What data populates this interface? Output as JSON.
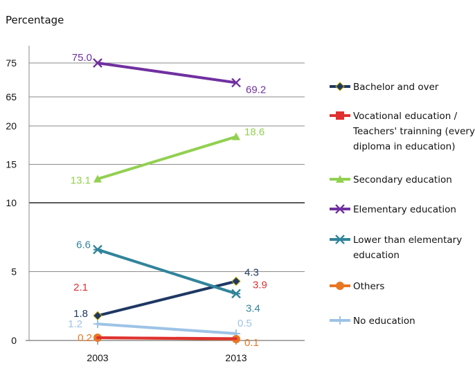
{
  "chart_data": {
    "type": "line",
    "ylabel": "Percentage",
    "categories": [
      "2003",
      "2013"
    ],
    "y_axis": {
      "broken": true,
      "segments": [
        [
          0,
          10
        ],
        [
          10,
          20
        ],
        [
          65,
          75
        ]
      ],
      "tick_labels": [
        "0",
        "5",
        "10",
        "15",
        "20",
        "65",
        "75"
      ]
    },
    "grid": true,
    "legend_position": "right",
    "series": [
      {
        "name": "Bachelor and over",
        "values": [
          1.8,
          4.3
        ],
        "labels": [
          "1.8",
          "4.3"
        ],
        "color": "#1f3864",
        "marker": "diamond"
      },
      {
        "name": "Vocational education / Teachers' trainning (every diploma in education)",
        "values": [
          2.1,
          3.9
        ],
        "labels": [
          "2.1",
          "3.9"
        ],
        "color": "#e03030",
        "marker": "square"
      },
      {
        "name": "Secondary education",
        "values": [
          13.1,
          18.6
        ],
        "labels": [
          "13.1",
          "18.6"
        ],
        "color": "#92d050",
        "marker": "triangle"
      },
      {
        "name": "Elementary education",
        "values": [
          75.0,
          69.2
        ],
        "labels": [
          "75.0",
          "69.2"
        ],
        "color": "#7030a0",
        "marker": "x"
      },
      {
        "name": "Lower than elementary education",
        "values": [
          6.6,
          3.4
        ],
        "labels": [
          "6.6",
          "3.4"
        ],
        "color": "#31849b",
        "marker": "star"
      },
      {
        "name": "Others",
        "values": [
          0.2,
          0.1
        ],
        "labels": [
          "0.2",
          "0.1"
        ],
        "color": "#e87722",
        "marker": "circle"
      },
      {
        "name": "No education",
        "values": [
          1.2,
          0.5
        ],
        "labels": [
          "1.2",
          "0.5"
        ],
        "color": "#9dc3e6",
        "marker": "plus"
      }
    ]
  }
}
